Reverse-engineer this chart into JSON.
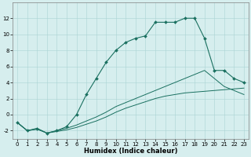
{
  "xlabel": "Humidex (Indice chaleur)",
  "ylabel": "",
  "xlim": [
    -0.5,
    23.5
  ],
  "ylim": [
    -3,
    14
  ],
  "yticks": [
    -2,
    0,
    2,
    4,
    6,
    8,
    10,
    12
  ],
  "xticks": [
    0,
    1,
    2,
    3,
    4,
    5,
    6,
    7,
    8,
    9,
    10,
    11,
    12,
    13,
    14,
    15,
    16,
    17,
    18,
    19,
    20,
    21,
    22,
    23
  ],
  "background_color": "#d6eeee",
  "line_color": "#1a7060",
  "line1_x": [
    0,
    1,
    2,
    3,
    4,
    5,
    6,
    7,
    8,
    9,
    10,
    11,
    12,
    13,
    14,
    15,
    16,
    17,
    18,
    19,
    20,
    21,
    22,
    23
  ],
  "line1_y": [
    -1.0,
    -2.0,
    -1.7,
    -2.3,
    -2.0,
    -1.7,
    -1.3,
    -0.8,
    -0.3,
    0.3,
    1.0,
    1.5,
    2.0,
    2.5,
    3.0,
    3.5,
    4.0,
    4.5,
    5.0,
    5.5,
    4.5,
    3.5,
    3.0,
    2.5
  ],
  "line2_x": [
    0,
    1,
    2,
    3,
    4,
    5,
    6,
    7,
    8,
    9,
    10,
    11,
    12,
    13,
    14,
    15,
    16,
    17,
    18,
    19,
    20,
    21,
    22,
    23
  ],
  "line2_y": [
    -1.0,
    -2.0,
    -1.8,
    -2.3,
    -2.0,
    -1.5,
    0.0,
    2.5,
    4.5,
    6.5,
    8.0,
    9.0,
    9.5,
    9.8,
    11.5,
    11.5,
    11.5,
    12.0,
    12.0,
    9.5,
    5.5,
    5.5,
    4.5,
    4.0
  ],
  "line3_x": [
    0,
    1,
    2,
    3,
    4,
    5,
    6,
    7,
    8,
    9,
    10,
    11,
    12,
    13,
    14,
    15,
    16,
    17,
    18,
    19,
    20,
    21,
    22,
    23
  ],
  "line3_y": [
    -1.0,
    -2.0,
    -1.8,
    -2.3,
    -2.1,
    -1.9,
    -1.6,
    -1.2,
    -0.8,
    -0.3,
    0.3,
    0.8,
    1.2,
    1.6,
    2.0,
    2.3,
    2.5,
    2.7,
    2.8,
    2.9,
    3.0,
    3.1,
    3.2,
    3.3
  ]
}
